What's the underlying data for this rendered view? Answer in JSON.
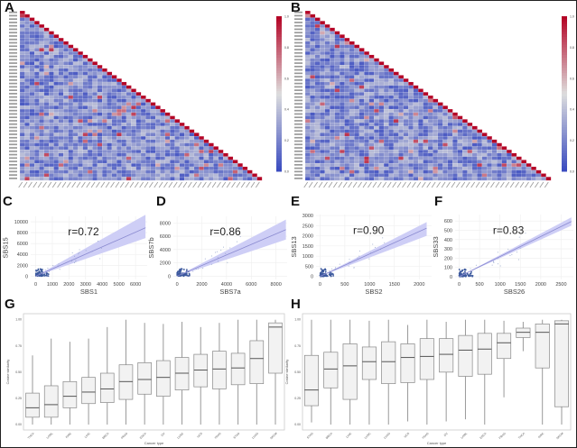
{
  "panels": {
    "A": "A",
    "B": "B",
    "C": "C",
    "D": "D",
    "E": "E",
    "F": "F",
    "G": "G",
    "H": "H"
  },
  "chart_data": [
    {
      "panel": "A",
      "type": "heatmap",
      "shape": "lower-triangle",
      "colormap": "coolwarm",
      "colorbar": {
        "range": [
          0,
          1
        ],
        "ticks": [
          "0.0",
          "0.2",
          "0.4",
          "0.6",
          "0.8",
          "1.0"
        ]
      }
    },
    {
      "panel": "B",
      "type": "heatmap",
      "shape": "lower-triangle",
      "colormap": "coolwarm",
      "colorbar": {
        "range": [
          0,
          1
        ],
        "ticks": [
          "0.0",
          "0.2",
          "0.4",
          "0.6",
          "0.8",
          "1.0"
        ]
      }
    },
    {
      "panel": "C",
      "type": "scatter",
      "xlabel": "SBS1",
      "ylabel": "SBS15",
      "annotation": "r=0.72",
      "xticks": [
        0,
        1000,
        2000,
        3000,
        4000,
        5000,
        6000
      ],
      "yticks": [
        0,
        2000,
        4000,
        6000,
        8000,
        10000
      ],
      "xlim": [
        -300,
        6700
      ],
      "ylim": [
        -600,
        11000
      ],
      "fit": {
        "x": [
          0,
          6600
        ],
        "y": [
          0,
          8900
        ],
        "band_upper_end": 11300,
        "band_lower_end": 7000
      }
    },
    {
      "panel": "D",
      "type": "scatter",
      "xlabel": "SBS7a",
      "ylabel": "SBS7b",
      "annotation": "r=0.86",
      "xticks": [
        0,
        2000,
        4000,
        6000,
        8000
      ],
      "yticks": [
        0,
        2000,
        4000,
        6000,
        8000
      ],
      "xlim": [
        -300,
        8900
      ],
      "ylim": [
        -500,
        9000
      ],
      "fit": {
        "x": [
          0,
          8800
        ],
        "y": [
          0,
          7000
        ],
        "band_upper_end": 8500,
        "band_lower_end": 5500
      }
    },
    {
      "panel": "E",
      "type": "scatter",
      "xlabel": "SBS2",
      "ylabel": "SBS13",
      "annotation": "r=0.90",
      "xticks": [
        0,
        500,
        1000,
        1500,
        2000
      ],
      "yticks": [
        0,
        500,
        1000,
        1500,
        2000,
        2500,
        3000
      ],
      "xlim": [
        -80,
        2250
      ],
      "ylim": [
        -150,
        3050
      ],
      "fit": {
        "x": [
          0,
          2150
        ],
        "y": [
          0,
          2380
        ],
        "band_upper_end": 2680,
        "band_lower_end": 2000
      }
    },
    {
      "panel": "F",
      "type": "scatter",
      "xlabel": "SBS26",
      "ylabel": "SBS33",
      "annotation": "r=0.83",
      "xticks": [
        0,
        500,
        1000,
        1500,
        2000,
        2500
      ],
      "yticks": [
        0,
        100,
        200,
        300,
        400,
        500,
        600
      ],
      "xlim": [
        -100,
        2800
      ],
      "ylim": [
        -30,
        670
      ],
      "fit": {
        "x": [
          0,
          2750
        ],
        "y": [
          0,
          595
        ],
        "band_upper_end": 640,
        "band_lower_end": 550
      }
    },
    {
      "panel": "G",
      "type": "box",
      "xlabel": "Cancer type",
      "ylabel": "Cosine similarity",
      "ylim": [
        0,
        1
      ],
      "yticks": [
        "0.00",
        "0.25",
        "0.50",
        "0.75",
        "1.00"
      ],
      "categories": [
        "THCA",
        "LAML",
        "KIRC",
        "LIHC",
        "BRCA",
        "PRAD",
        "ESCA",
        "OV",
        "LUSC",
        "UCS",
        "PAAD",
        "STAD",
        "LUAD",
        "SKCM"
      ],
      "boxes": [
        [
          0,
          0.07,
          0.16,
          0.3,
          0.66
        ],
        [
          0,
          0.07,
          0.19,
          0.37,
          0.82
        ],
        [
          0,
          0.16,
          0.27,
          0.41,
          0.79
        ],
        [
          0,
          0.2,
          0.31,
          0.45,
          0.82
        ],
        [
          0,
          0.21,
          0.34,
          0.49,
          0.93
        ],
        [
          0,
          0.24,
          0.41,
          0.57,
          1.0
        ],
        [
          0,
          0.29,
          0.43,
          0.59,
          0.97
        ],
        [
          0,
          0.27,
          0.45,
          0.61,
          0.96
        ],
        [
          0,
          0.33,
          0.49,
          0.64,
          0.98
        ],
        [
          0,
          0.36,
          0.52,
          0.67,
          0.93
        ],
        [
          0,
          0.34,
          0.53,
          0.7,
          0.97
        ],
        [
          0,
          0.38,
          0.54,
          0.68,
          1.0
        ],
        [
          0,
          0.39,
          0.63,
          0.8,
          1.0
        ],
        [
          0,
          0.49,
          0.93,
          0.97,
          1.0
        ]
      ]
    },
    {
      "panel": "H",
      "type": "box",
      "xlabel": "Cancer type",
      "ylabel": "Cosine similarity",
      "ylim": [
        0,
        1
      ],
      "yticks": [
        "0.00",
        "0.25",
        "0.50",
        "0.75",
        "1.00"
      ],
      "categories": [
        "STAD",
        "BRCA",
        "LIHC",
        "LUSC",
        "LUAD",
        "UCS",
        "PAAD",
        "OV",
        "LAML",
        "ESCA",
        "PRAD",
        "THCA",
        "KIRC",
        "SKCM"
      ],
      "boxes": [
        [
          0.02,
          0.18,
          0.33,
          0.66,
          1.0
        ],
        [
          0,
          0.35,
          0.53,
          0.69,
          1.0
        ],
        [
          0,
          0.24,
          0.56,
          0.77,
          1.0
        ],
        [
          0,
          0.43,
          0.6,
          0.74,
          0.99
        ],
        [
          0,
          0.39,
          0.6,
          0.79,
          1.0
        ],
        [
          0.03,
          0.4,
          0.64,
          0.77,
          0.95
        ],
        [
          0,
          0.43,
          0.65,
          0.82,
          1.0
        ],
        [
          0.03,
          0.5,
          0.67,
          0.82,
          0.98
        ],
        [
          0.05,
          0.46,
          0.71,
          0.85,
          1.0
        ],
        [
          0,
          0.48,
          0.72,
          0.87,
          1.0
        ],
        [
          0.26,
          0.63,
          0.78,
          0.87,
          0.99
        ],
        [
          0.7,
          0.83,
          0.88,
          0.92,
          0.98
        ],
        [
          0,
          0.54,
          0.88,
          0.96,
          1.0
        ],
        [
          0,
          0.17,
          0.96,
          0.99,
          1.0
        ]
      ]
    }
  ]
}
